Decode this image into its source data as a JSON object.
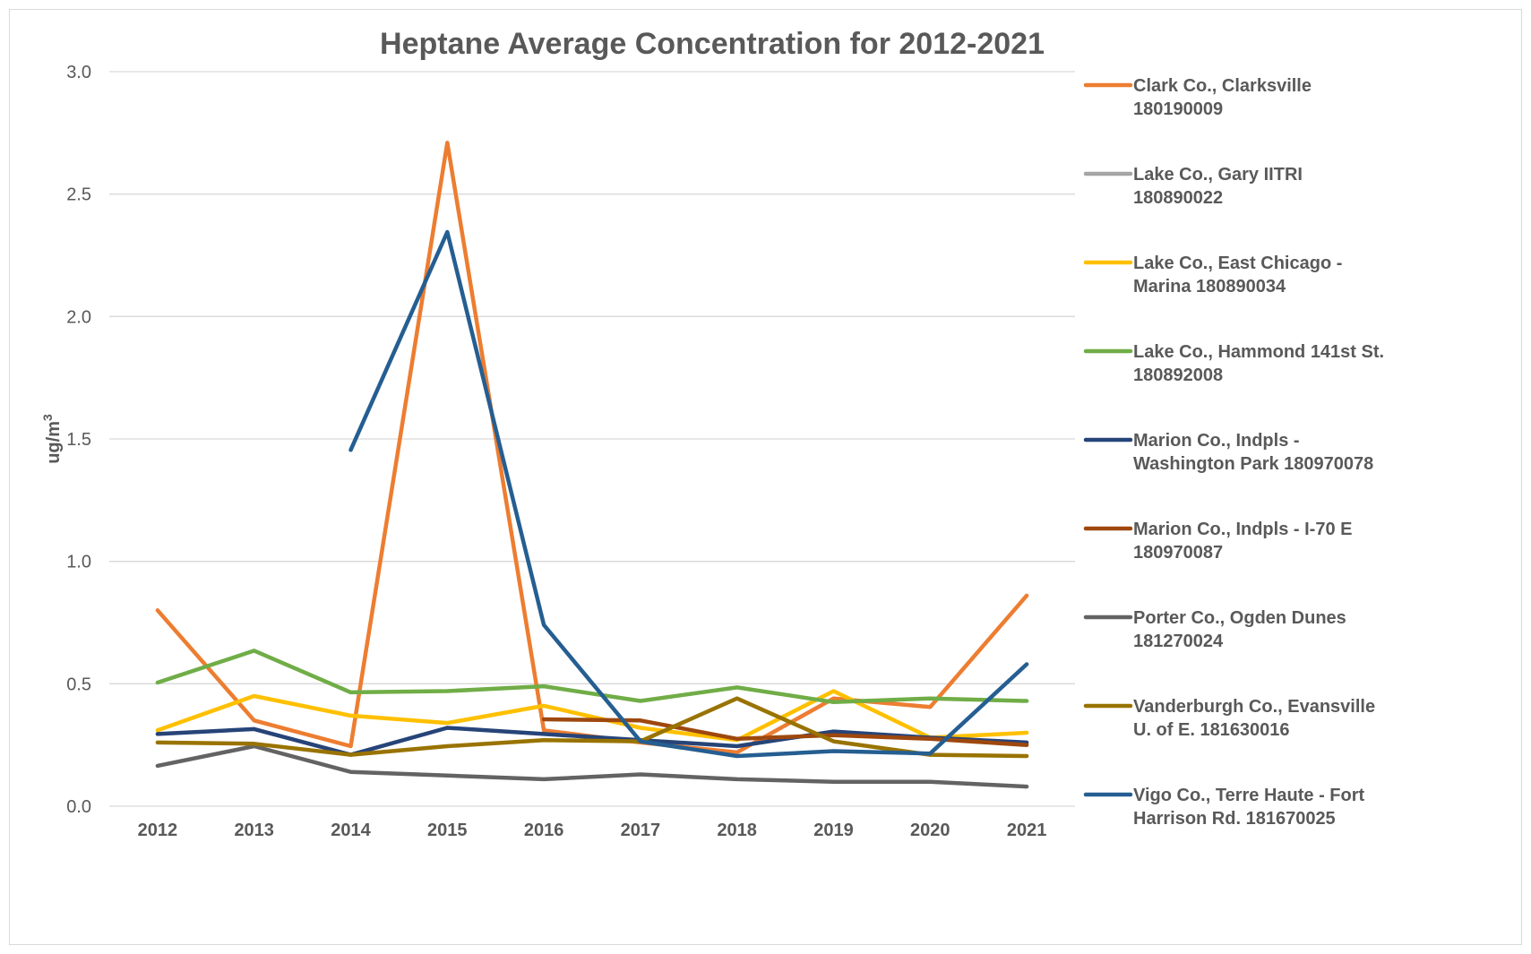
{
  "chart_data": {
    "type": "line",
    "title": "Heptane Average Concentration for 2012-2021",
    "xlabel": "",
    "ylabel": "ug/m",
    "ylabel_sup": "3",
    "ylim": [
      0,
      3.0
    ],
    "yticks": [
      "0.0",
      "0.5",
      "1.0",
      "1.5",
      "2.0",
      "2.5",
      "3.0"
    ],
    "categories": [
      "2012",
      "2013",
      "2014",
      "2015",
      "2016",
      "2017",
      "2018",
      "2019",
      "2020",
      "2021"
    ],
    "grid": true,
    "legend_position": "right",
    "series": [
      {
        "name": "Clark Co., Clarksville 180190009",
        "legend_lines": [
          "Clark Co., Clarksville",
          "180190009"
        ],
        "color": "#ED7D31",
        "values": [
          0.8,
          0.35,
          0.245,
          2.71,
          0.31,
          0.26,
          0.22,
          0.44,
          0.405,
          0.86
        ]
      },
      {
        "name": "Lake Co., Gary IITRI 180890022",
        "legend_lines": [
          "Lake Co., Gary IITRI",
          "180890022"
        ],
        "color": "#A5A5A5",
        "values": [
          null,
          null,
          null,
          null,
          null,
          null,
          null,
          null,
          null,
          null
        ]
      },
      {
        "name": "Lake Co., East Chicago - Marina 180890034",
        "legend_lines": [
          "Lake Co., East Chicago -",
          "Marina 180890034"
        ],
        "color": "#FFC000",
        "values": [
          0.31,
          0.45,
          0.37,
          0.34,
          0.41,
          0.32,
          0.27,
          0.47,
          0.28,
          0.3
        ]
      },
      {
        "name": "Lake Co., Hammond 141st St. 180892008",
        "legend_lines": [
          "Lake Co., Hammond 141st St.",
          "180892008"
        ],
        "color": "#70AD47",
        "values": [
          0.505,
          0.635,
          0.465,
          0.47,
          0.49,
          0.43,
          0.485,
          0.425,
          0.44,
          0.43
        ]
      },
      {
        "name": "Marion Co., Indpls - Washington Park 180970078",
        "legend_lines": [
          "Marion Co., Indpls -",
          "Washington Park 180970078"
        ],
        "color": "#264478",
        "values": [
          0.295,
          0.315,
          0.21,
          0.32,
          0.295,
          0.27,
          0.245,
          0.305,
          0.28,
          0.26
        ]
      },
      {
        "name": "Marion Co., Indpls - I-70 E 180970087",
        "legend_lines": [
          "Marion Co., Indpls - I-70 E",
          "180970087"
        ],
        "color": "#9E480E",
        "values": [
          null,
          null,
          null,
          null,
          0.355,
          0.35,
          0.275,
          0.29,
          0.275,
          0.25
        ]
      },
      {
        "name": "Porter Co., Ogden Dunes 181270024",
        "legend_lines": [
          "Porter Co., Ogden Dunes",
          "181270024"
        ],
        "color": "#636363",
        "values": [
          0.165,
          0.245,
          0.14,
          0.125,
          0.11,
          0.13,
          0.11,
          0.1,
          0.1,
          0.08
        ]
      },
      {
        "name": "Vanderburgh Co., Evansville U. of E. 181630016",
        "legend_lines": [
          "Vanderburgh Co., Evansville",
          "U. of E. 181630016"
        ],
        "color": "#997300",
        "values": [
          0.26,
          0.255,
          0.21,
          0.245,
          0.27,
          0.265,
          0.44,
          0.265,
          0.21,
          0.205
        ]
      },
      {
        "name": "Vigo Co., Terre Haute - Fort Harrison Rd. 181670025",
        "legend_lines": [
          "Vigo Co., Terre Haute - Fort",
          "Harrison Rd. 181670025"
        ],
        "color": "#255E91",
        "values": [
          null,
          null,
          1.455,
          2.345,
          0.74,
          0.265,
          0.205,
          0.225,
          0.215,
          0.58
        ]
      }
    ]
  }
}
